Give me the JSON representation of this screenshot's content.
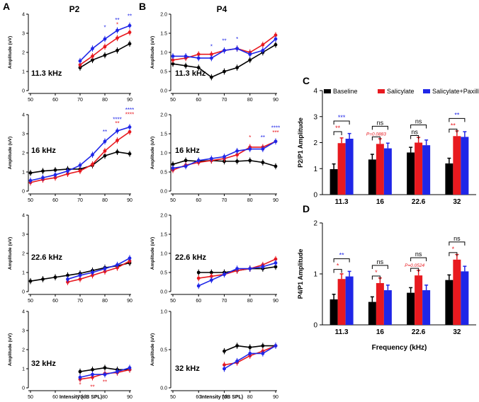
{
  "colors": {
    "baseline": "#000000",
    "salicylate": "#e8191f",
    "paxilline": "#1f26e8",
    "axis": "#000000",
    "sigRed": "#e8191f",
    "sigBlue": "#1f26e8"
  },
  "panel_letters": {
    "A": "A",
    "B": "B",
    "C": "C",
    "D": "D"
  },
  "column_titles": {
    "p2": "P2",
    "p4": "P4"
  },
  "common": {
    "x_axis_label": "Intensity (dB SPL)",
    "y_axis_label": "Amplitude (uV)"
  },
  "chart_data": [
    {
      "id": "A1",
      "type": "line",
      "title": "P2",
      "freq_label": "11.3 kHz",
      "xlim": [
        50,
        90
      ],
      "ylim": [
        0,
        4
      ],
      "xticks": [
        "50",
        "60",
        "70",
        "80",
        "90"
      ],
      "yticks": [
        "0",
        "1",
        "2",
        "3",
        "4"
      ],
      "series": [
        {
          "name": "Baseline",
          "x": [
            70,
            75,
            80,
            85,
            90
          ],
          "values": [
            1.2,
            1.6,
            1.85,
            2.1,
            2.45
          ]
        },
        {
          "name": "Salicylate",
          "x": [
            70,
            75,
            80,
            85,
            90
          ],
          "values": [
            1.35,
            1.8,
            2.3,
            2.75,
            3.05
          ]
        },
        {
          "name": "Salicylate+Paxilline",
          "x": [
            70,
            75,
            80,
            85,
            90
          ],
          "values": [
            1.55,
            2.2,
            2.7,
            3.15,
            3.4
          ]
        }
      ],
      "annotations": [
        {
          "x": 80,
          "y": 3.2,
          "text": "*",
          "color": "blue"
        },
        {
          "x": 85,
          "y": 3.6,
          "text": "**",
          "color": "blue"
        },
        {
          "x": 85,
          "y": 3.35,
          "text": "*",
          "color": "red"
        },
        {
          "x": 90,
          "y": 3.8,
          "text": "**",
          "color": "blue"
        }
      ]
    },
    {
      "id": "A2",
      "type": "line",
      "freq_label": "16 kHz",
      "xlim": [
        50,
        90
      ],
      "ylim": [
        0,
        4
      ],
      "xticks": [
        "50",
        "60",
        "70",
        "80",
        "90"
      ],
      "yticks": [
        "0",
        "1",
        "2",
        "3",
        "4"
      ],
      "series": [
        {
          "name": "Baseline",
          "x": [
            50,
            55,
            60,
            65,
            70,
            75,
            80,
            85,
            90
          ],
          "values": [
            0.95,
            1.05,
            1.1,
            1.15,
            1.15,
            1.35,
            1.85,
            2.05,
            1.95
          ]
        },
        {
          "name": "Salicylate",
          "x": [
            50,
            55,
            60,
            65,
            70,
            75,
            80,
            85,
            90
          ],
          "values": [
            0.45,
            0.6,
            0.7,
            0.9,
            1.05,
            1.4,
            2.1,
            2.65,
            3.1
          ]
        },
        {
          "name": "Salicylate+Paxilline",
          "x": [
            50,
            55,
            60,
            65,
            70,
            75,
            80,
            85,
            90
          ],
          "values": [
            0.55,
            0.7,
            0.85,
            1.05,
            1.35,
            1.9,
            2.6,
            3.15,
            3.35
          ]
        }
      ],
      "annotations": [
        {
          "x": 80,
          "y": 3.0,
          "text": "**",
          "color": "blue"
        },
        {
          "x": 85,
          "y": 3.65,
          "text": "****",
          "color": "blue"
        },
        {
          "x": 85,
          "y": 3.45,
          "text": "**",
          "color": "red"
        },
        {
          "x": 90,
          "y": 4.15,
          "text": "****",
          "color": "blue"
        },
        {
          "x": 90,
          "y": 3.9,
          "text": "****",
          "color": "red"
        }
      ]
    },
    {
      "id": "A3",
      "type": "line",
      "freq_label": "22.6 kHz",
      "xlim": [
        50,
        90
      ],
      "ylim": [
        0,
        4
      ],
      "xticks": [
        "50",
        "60",
        "70",
        "80",
        "90"
      ],
      "yticks": [
        "0",
        "1",
        "2",
        "3",
        "4"
      ],
      "series": [
        {
          "name": "Baseline",
          "x": [
            50,
            55,
            60,
            65,
            70,
            75,
            80,
            85,
            90
          ],
          "values": [
            0.55,
            0.65,
            0.75,
            0.85,
            0.95,
            1.1,
            1.25,
            1.35,
            1.5
          ]
        },
        {
          "name": "Salicylate",
          "x": [
            65,
            70,
            75,
            80,
            85,
            90
          ],
          "values": [
            0.5,
            0.65,
            0.85,
            1.05,
            1.25,
            1.6
          ]
        },
        {
          "name": "Salicylate+Paxilline",
          "x": [
            65,
            70,
            75,
            80,
            85,
            90
          ],
          "values": [
            0.65,
            0.85,
            1.0,
            1.2,
            1.4,
            1.75
          ]
        }
      ],
      "annotations": []
    },
    {
      "id": "A4",
      "type": "line",
      "freq_label": "32 kHz",
      "xlim": [
        50,
        90
      ],
      "ylim": [
        0,
        4
      ],
      "xticks": [
        "50",
        "60",
        "70",
        "80",
        "90"
      ],
      "yticks": [
        "0",
        "1",
        "2",
        "3",
        "4"
      ],
      "series": [
        {
          "name": "Baseline",
          "x": [
            70,
            75,
            80,
            85,
            90
          ],
          "values": [
            0.85,
            0.95,
            1.05,
            0.95,
            0.95
          ]
        },
        {
          "name": "Salicylate",
          "x": [
            70,
            75,
            80,
            85,
            90
          ],
          "values": [
            0.45,
            0.55,
            0.75,
            0.8,
            0.95
          ]
        },
        {
          "name": "Salicylate+Paxilline",
          "x": [
            70,
            75,
            80,
            85,
            90
          ],
          "values": [
            0.55,
            0.7,
            0.7,
            0.85,
            1.05
          ]
        }
      ],
      "annotations": [
        {
          "x": 70,
          "y": 0.05,
          "text": "*",
          "color": "red"
        },
        {
          "x": 75,
          "y": -0.05,
          "text": "**",
          "color": "red"
        },
        {
          "x": 80,
          "y": 0.2,
          "text": "**",
          "color": "red"
        }
      ]
    },
    {
      "id": "B1",
      "type": "line",
      "title": "P4",
      "freq_label": "11.3 kHz",
      "xlim": [
        50,
        90
      ],
      "ylim": [
        0,
        2
      ],
      "xticks": [
        "50",
        "60",
        "70",
        "80",
        "90"
      ],
      "yticks": [
        "0.0",
        "0.5",
        "1.0",
        "1.5",
        "2.0"
      ],
      "series": [
        {
          "name": "Baseline",
          "x": [
            50,
            55,
            60,
            65,
            70,
            75,
            80,
            85,
            90
          ],
          "values": [
            0.7,
            0.65,
            0.6,
            0.35,
            0.5,
            0.6,
            0.8,
            1.0,
            1.2
          ]
        },
        {
          "name": "Salicylate",
          "x": [
            50,
            55,
            60,
            65,
            70,
            75,
            80,
            85,
            90
          ],
          "values": [
            0.8,
            0.85,
            0.95,
            0.95,
            1.05,
            1.1,
            1.0,
            1.2,
            1.45
          ]
        },
        {
          "name": "Salicylate+Paxilline",
          "x": [
            50,
            55,
            60,
            65,
            70,
            75,
            80,
            85,
            90
          ],
          "values": [
            0.9,
            0.9,
            0.85,
            0.85,
            1.05,
            1.1,
            0.95,
            1.05,
            1.35
          ]
        }
      ],
      "annotations": [
        {
          "x": 65,
          "y": 1.1,
          "text": "*",
          "color": "blue"
        },
        {
          "x": 70,
          "y": 1.25,
          "text": "**",
          "color": "blue"
        },
        {
          "x": 75,
          "y": 1.3,
          "text": "*",
          "color": "blue"
        }
      ]
    },
    {
      "id": "B2",
      "type": "line",
      "freq_label": "16 kHz",
      "xlim": [
        50,
        90
      ],
      "ylim": [
        0,
        2
      ],
      "xticks": [
        "50",
        "60",
        "70",
        "80",
        "90"
      ],
      "yticks": [
        "0.0",
        "0.5",
        "1.0",
        "1.5",
        "2.0"
      ],
      "series": [
        {
          "name": "Baseline",
          "x": [
            50,
            55,
            60,
            65,
            70,
            75,
            80,
            85,
            90
          ],
          "values": [
            0.7,
            0.8,
            0.78,
            0.8,
            0.78,
            0.78,
            0.8,
            0.75,
            0.65
          ]
        },
        {
          "name": "Salicylate",
          "x": [
            50,
            55,
            60,
            65,
            70,
            75,
            80,
            85,
            90
          ],
          "values": [
            0.55,
            0.68,
            0.75,
            0.8,
            0.85,
            0.95,
            1.15,
            1.15,
            1.3
          ]
        },
        {
          "name": "Salicylate+Paxilline",
          "x": [
            50,
            55,
            60,
            65,
            70,
            75,
            80,
            85,
            90
          ],
          "values": [
            0.6,
            0.65,
            0.8,
            0.85,
            0.9,
            1.05,
            1.1,
            1.1,
            1.3
          ]
        }
      ],
      "annotations": [
        {
          "x": 80,
          "y": 1.35,
          "text": "*",
          "color": "red"
        },
        {
          "x": 85,
          "y": 1.35,
          "text": "**",
          "color": "blue"
        },
        {
          "x": 90,
          "y": 1.6,
          "text": "****",
          "color": "blue"
        },
        {
          "x": 90,
          "y": 1.48,
          "text": "***",
          "color": "red"
        }
      ]
    },
    {
      "id": "B3",
      "type": "line",
      "freq_label": "22.6 kHz",
      "xlim": [
        50,
        90
      ],
      "ylim": [
        0,
        2
      ],
      "xticks": [
        "50",
        "60",
        "70",
        "80",
        "90"
      ],
      "yticks": [
        "0.0",
        "0.5",
        "1.0",
        "1.5",
        "2.0"
      ],
      "series": [
        {
          "name": "Baseline",
          "x": [
            60,
            65,
            70,
            75,
            80,
            85,
            90
          ],
          "values": [
            0.5,
            0.5,
            0.5,
            0.55,
            0.6,
            0.6,
            0.65
          ]
        },
        {
          "name": "Salicylate",
          "x": [
            60,
            65,
            70,
            75,
            80,
            85,
            90
          ],
          "values": [
            0.35,
            0.4,
            0.45,
            0.55,
            0.6,
            0.7,
            0.85
          ]
        },
        {
          "name": "Salicylate+Paxilline",
          "x": [
            60,
            65,
            70,
            75,
            80,
            85,
            90
          ],
          "values": [
            0.15,
            0.3,
            0.45,
            0.6,
            0.6,
            0.65,
            0.75
          ]
        }
      ],
      "annotations": []
    },
    {
      "id": "B4",
      "type": "line",
      "freq_label": "32 kHz",
      "xlim": [
        50,
        90
      ],
      "ylim": [
        0,
        1
      ],
      "xticks": [
        "50",
        "60",
        "70",
        "80",
        "90"
      ],
      "yticks": [
        "0.0",
        "0.5",
        "1.0"
      ],
      "series": [
        {
          "name": "Baseline",
          "x": [
            70,
            75,
            80,
            85,
            90
          ],
          "values": [
            0.48,
            0.55,
            0.53,
            0.55,
            0.55
          ]
        },
        {
          "name": "Salicylate",
          "x": [
            70,
            75,
            80,
            85,
            90
          ],
          "values": [
            0.3,
            0.33,
            0.42,
            0.48,
            0.55
          ]
        },
        {
          "name": "Salicylate+Paxilline",
          "x": [
            70,
            75,
            80,
            85,
            90
          ],
          "values": [
            0.25,
            0.35,
            0.45,
            0.45,
            0.55
          ]
        }
      ],
      "annotations": []
    },
    {
      "id": "C",
      "type": "bar",
      "ylabel": "P2/P1 Amplitude",
      "ylim": [
        0,
        4
      ],
      "yticks": [
        "0",
        "1",
        "2",
        "3",
        "4"
      ],
      "categories": [
        "11.3",
        "16",
        "22.6",
        "32"
      ],
      "legend": [
        "Baseline",
        "Salicylate",
        "Salicylate+Paxilline"
      ],
      "series": [
        {
          "name": "Baseline",
          "values": [
            0.98,
            1.35,
            1.62,
            1.2
          ]
        },
        {
          "name": "Salicylate",
          "values": [
            1.98,
            1.95,
            2.0,
            2.25
          ]
        },
        {
          "name": "Salicylate+Paxilline",
          "values": [
            2.15,
            1.78,
            1.9,
            2.22
          ]
        }
      ],
      "brackets": [
        {
          "cat": 0,
          "to": 1,
          "text": "**",
          "color": "red"
        },
        {
          "cat": 0,
          "to": 2,
          "text": "***",
          "color": "blue"
        },
        {
          "cat": 1,
          "to": 1,
          "text": "P=0.0883",
          "color": "red"
        },
        {
          "cat": 1,
          "to": 2,
          "text": "ns",
          "color": "black"
        },
        {
          "cat": 2,
          "to": 1,
          "text": "ns",
          "color": "black"
        },
        {
          "cat": 2,
          "to": 2,
          "text": "ns",
          "color": "black"
        },
        {
          "cat": 3,
          "to": 1,
          "text": "**",
          "color": "red"
        },
        {
          "cat": 3,
          "to": 2,
          "text": "**",
          "color": "blue"
        }
      ]
    },
    {
      "id": "D",
      "type": "bar",
      "ylabel": "P4/P1 Amplitude",
      "xlabel": "Frequency (kHz)",
      "ylim": [
        0,
        2
      ],
      "yticks": [
        "0",
        "1",
        "2"
      ],
      "categories": [
        "11.3",
        "16",
        "22.6",
        "32"
      ],
      "series": [
        {
          "name": "Baseline",
          "values": [
            0.5,
            0.45,
            0.63,
            0.88
          ]
        },
        {
          "name": "Salicylate",
          "values": [
            0.9,
            0.82,
            0.97,
            1.28
          ]
        },
        {
          "name": "Salicylate+Paxilline",
          "values": [
            0.95,
            0.68,
            0.68,
            1.05
          ]
        }
      ],
      "brackets": [
        {
          "cat": 0,
          "to": 1,
          "text": "*",
          "color": "red"
        },
        {
          "cat": 0,
          "to": 2,
          "text": "**",
          "color": "blue"
        },
        {
          "cat": 1,
          "to": 1,
          "text": "*",
          "color": "red"
        },
        {
          "cat": 1,
          "to": 2,
          "text": "ns",
          "color": "black"
        },
        {
          "cat": 2,
          "to": 1,
          "text": "P=0.0524",
          "color": "red"
        },
        {
          "cat": 2,
          "to": 2,
          "text": "ns",
          "color": "black"
        },
        {
          "cat": 3,
          "to": 1,
          "text": "*",
          "color": "red"
        },
        {
          "cat": 3,
          "to": 2,
          "text": "ns",
          "color": "black"
        }
      ]
    }
  ]
}
